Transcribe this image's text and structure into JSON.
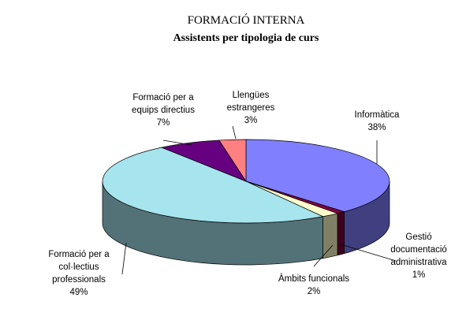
{
  "chart_data": {
    "type": "pie",
    "title": "FORMACIÓ INTERNA",
    "subtitle": "Assistents per tipologia de curs",
    "slices": [
      {
        "key": "informatica",
        "label_lines": [
          "Informàtica"
        ],
        "percent_label": "38%",
        "value": 38,
        "color": "#8080ff"
      },
      {
        "key": "gestio",
        "label_lines": [
          "Gestió",
          "documentació",
          "administrativa"
        ],
        "percent_label": "1%",
        "value": 1,
        "color": "#800040"
      },
      {
        "key": "ambits",
        "label_lines": [
          "Àmbits funcionals"
        ],
        "percent_label": "2%",
        "value": 2,
        "color": "#ffffcc"
      },
      {
        "key": "collectius",
        "label_lines": [
          "Formació per a",
          "col·lectius",
          "professionals"
        ],
        "percent_label": "49%",
        "value": 49,
        "color": "#a6e4ee"
      },
      {
        "key": "directius",
        "label_lines": [
          "Formació per a",
          "equips directius"
        ],
        "percent_label": "7%",
        "value": 7,
        "color": "#660080"
      },
      {
        "key": "llengues",
        "label_lines": [
          "Llengües",
          "estrangeres"
        ],
        "percent_label": "3%",
        "value": 3,
        "color": "#ff8080"
      }
    ]
  }
}
